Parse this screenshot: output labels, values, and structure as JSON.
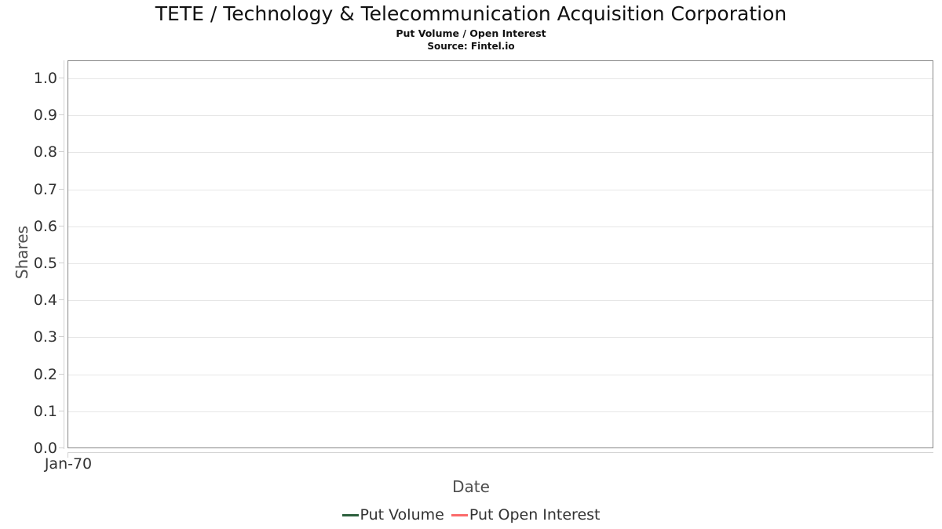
{
  "chart_data": {
    "type": "line",
    "title": "TETE / Technology & Telecommunication Acquisition Corporation",
    "subtitle": "Put Volume / Open Interest",
    "source": "Source: Fintel.io",
    "xlabel": "Date",
    "ylabel": "Shares",
    "x_ticks": [
      "Jan-70"
    ],
    "y_ticks": [
      0.0,
      0.1,
      0.2,
      0.3,
      0.4,
      0.5,
      0.6,
      0.7,
      0.8,
      0.9,
      1.0
    ],
    "ylim": [
      0.0,
      1.05
    ],
    "grid": "horizontal-only",
    "legend_position": "bottom-center",
    "series": [
      {
        "name": "Put Volume",
        "color": "#2c5f3c",
        "x": [],
        "values": []
      },
      {
        "name": "Put Open Interest",
        "color": "#fb6a6a",
        "x": [],
        "values": []
      }
    ],
    "colors": {
      "plot_border": "#878787",
      "gridline": "#e6e6e6",
      "axis_line": "#d4d4d4",
      "tick": "#cfcfcf",
      "tick_label": "#333333",
      "axis_title": "#4d4d4d",
      "title_text": "#111111"
    }
  }
}
